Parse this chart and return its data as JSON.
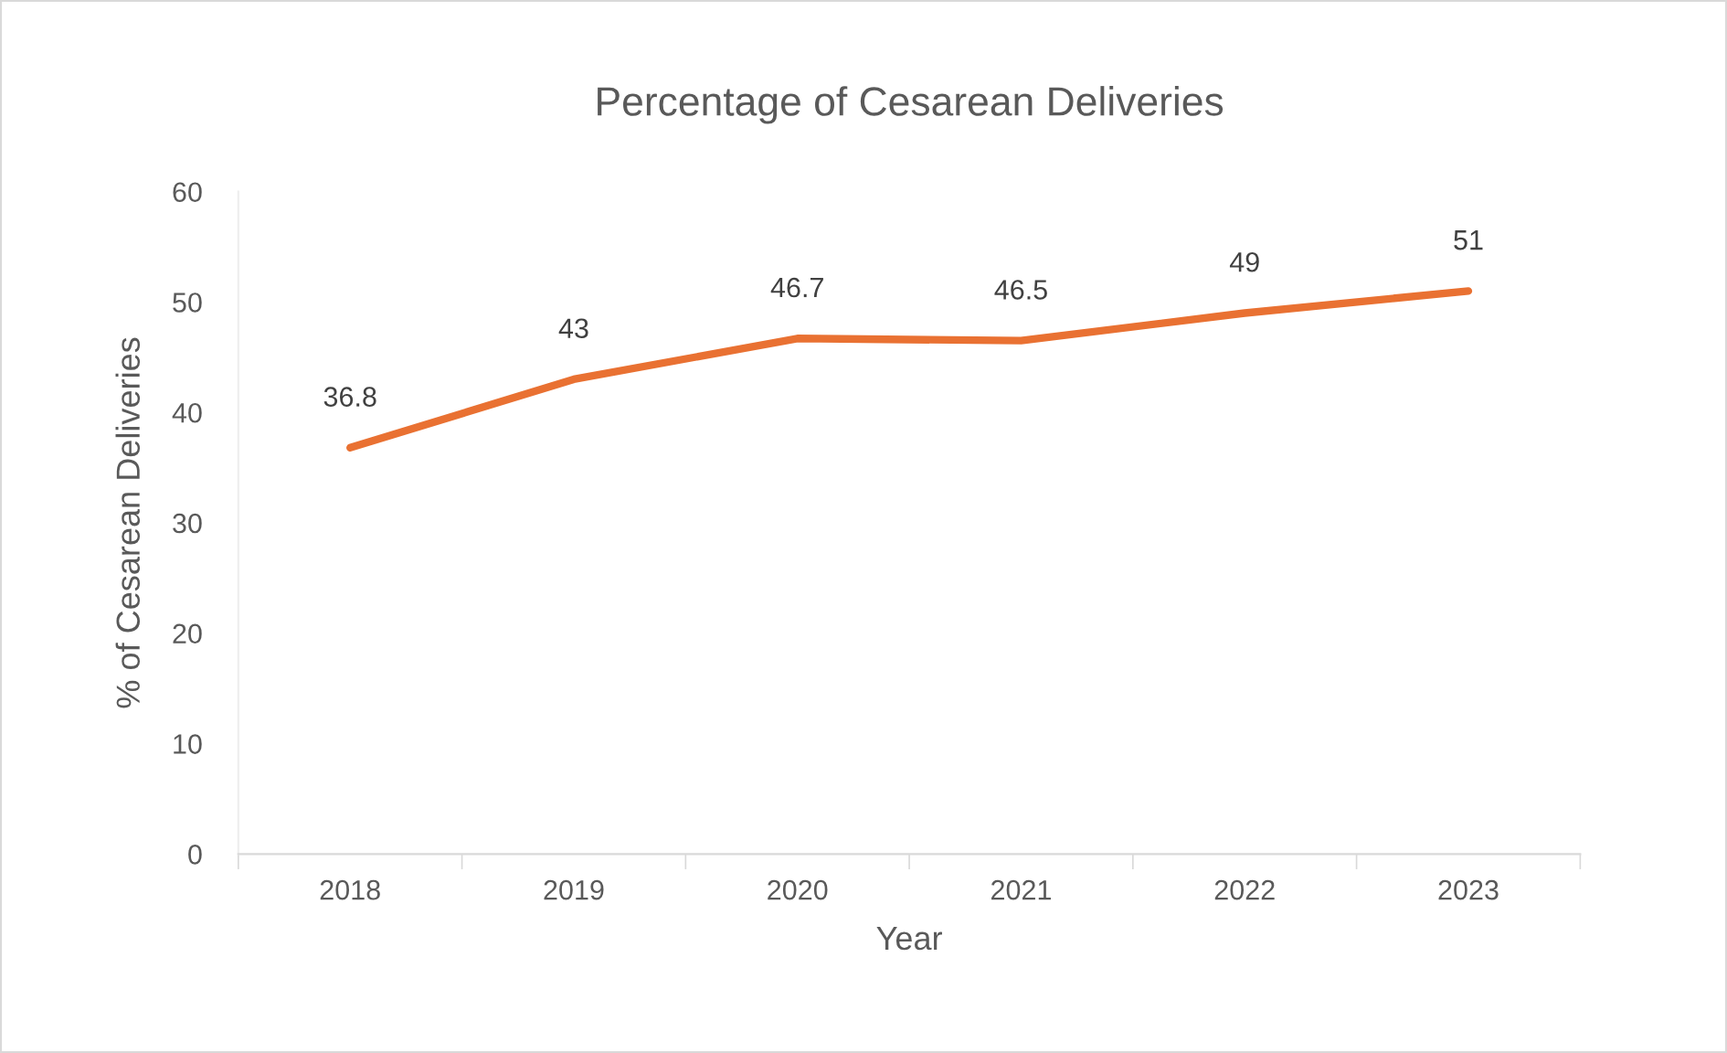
{
  "chart_data": {
    "type": "line",
    "title": "Percentage of Cesarean Deliveries",
    "xlabel": "Year",
    "ylabel": "% of Cesarean Deliveries",
    "categories": [
      "2018",
      "2019",
      "2020",
      "2021",
      "2022",
      "2023"
    ],
    "series": [
      {
        "color": "#e97132",
        "values": [
          36.8,
          43,
          46.7,
          46.5,
          49,
          51
        ]
      }
    ],
    "ylim": [
      0,
      60
    ],
    "yticks": [
      0,
      10,
      20,
      30,
      40,
      50,
      60
    ],
    "data_labels": true,
    "grid": false,
    "legend": false,
    "marker": "none",
    "line_style": "solid"
  }
}
